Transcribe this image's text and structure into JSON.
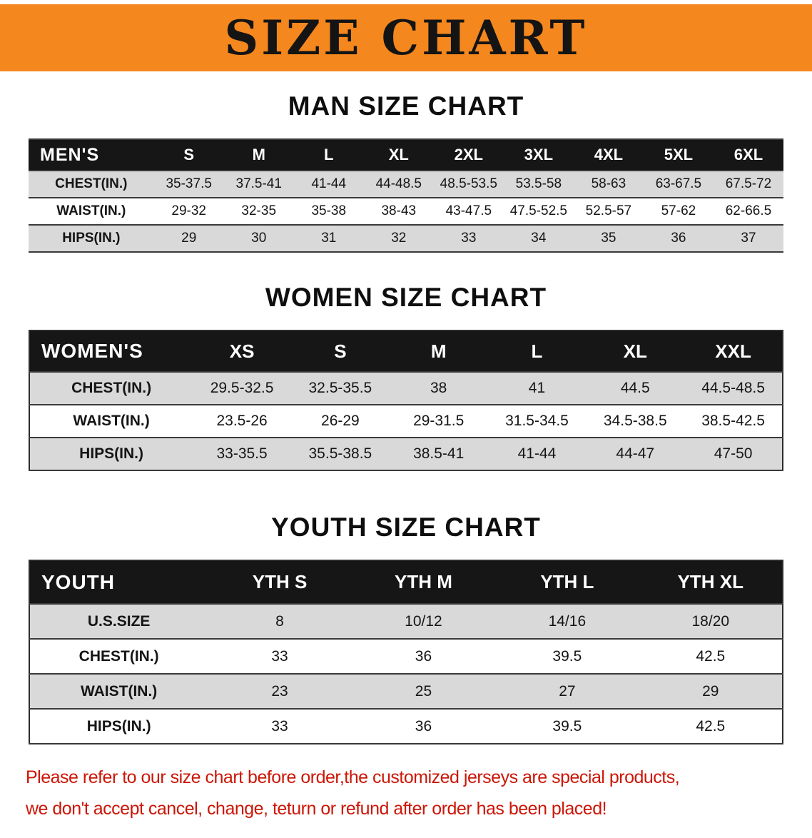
{
  "banner": {
    "title": "SIZE CHART"
  },
  "colors": {
    "banner_bg": "#F4871E",
    "header_bg": "#161616",
    "row_alt_bg": "#D9D9D9",
    "disclaimer_red": "#CC1606"
  },
  "sections": [
    {
      "id": "men",
      "heading": "MAN SIZE CHART",
      "columns": [
        "MEN'S",
        "S",
        "M",
        "L",
        "XL",
        "2XL",
        "3XL",
        "4XL",
        "5XL",
        "6XL"
      ],
      "rows": [
        {
          "label": "CHEST(IN.)",
          "values": [
            "35-37.5",
            "37.5-41",
            "41-44",
            "44-48.5",
            "48.5-53.5",
            "53.5-58",
            "58-63",
            "63-67.5",
            "67.5-72"
          ]
        },
        {
          "label": "WAIST(IN.)",
          "values": [
            "29-32",
            "32-35",
            "35-38",
            "38-43",
            "43-47.5",
            "47.5-52.5",
            "52.5-57",
            "57-62",
            "62-66.5"
          ]
        },
        {
          "label": "HIPS(IN.)",
          "values": [
            "29",
            "30",
            "31",
            "32",
            "33",
            "34",
            "35",
            "36",
            "37"
          ]
        }
      ]
    },
    {
      "id": "women",
      "heading": "WOMEN SIZE CHART",
      "columns": [
        "WOMEN'S",
        "XS",
        "S",
        "M",
        "L",
        "XL",
        "XXL"
      ],
      "rows": [
        {
          "label": "CHEST(IN.)",
          "values": [
            "29.5-32.5",
            "32.5-35.5",
            "38",
            "41",
            "44.5",
            "44.5-48.5"
          ]
        },
        {
          "label": "WAIST(IN.)",
          "values": [
            "23.5-26",
            "26-29",
            "29-31.5",
            "31.5-34.5",
            "34.5-38.5",
            "38.5-42.5"
          ]
        },
        {
          "label": "HIPS(IN.)",
          "values": [
            "33-35.5",
            "35.5-38.5",
            "38.5-41",
            "41-44",
            "44-47",
            "47-50"
          ]
        }
      ]
    },
    {
      "id": "youth",
      "heading": "YOUTH SIZE CHART",
      "columns": [
        "YOUTH",
        "YTH S",
        "YTH M",
        "YTH L",
        "YTH XL"
      ],
      "rows": [
        {
          "label": "U.S.SIZE",
          "values": [
            "8",
            "10/12",
            "14/16",
            "18/20"
          ]
        },
        {
          "label": "CHEST(IN.)",
          "values": [
            "33",
            "36",
            "39.5",
            "42.5"
          ]
        },
        {
          "label": "WAIST(IN.)",
          "values": [
            "23",
            "25",
            "27",
            "29"
          ]
        },
        {
          "label": "HIPS(IN.)",
          "values": [
            "33",
            "36",
            "39.5",
            "42.5"
          ]
        }
      ]
    }
  ],
  "disclaimer": {
    "line1": "Please refer to our size chart before order,the customized jerseys are special products,",
    "line2": "we don't accept cancel, change, teturn or refund after order has been placed!"
  }
}
